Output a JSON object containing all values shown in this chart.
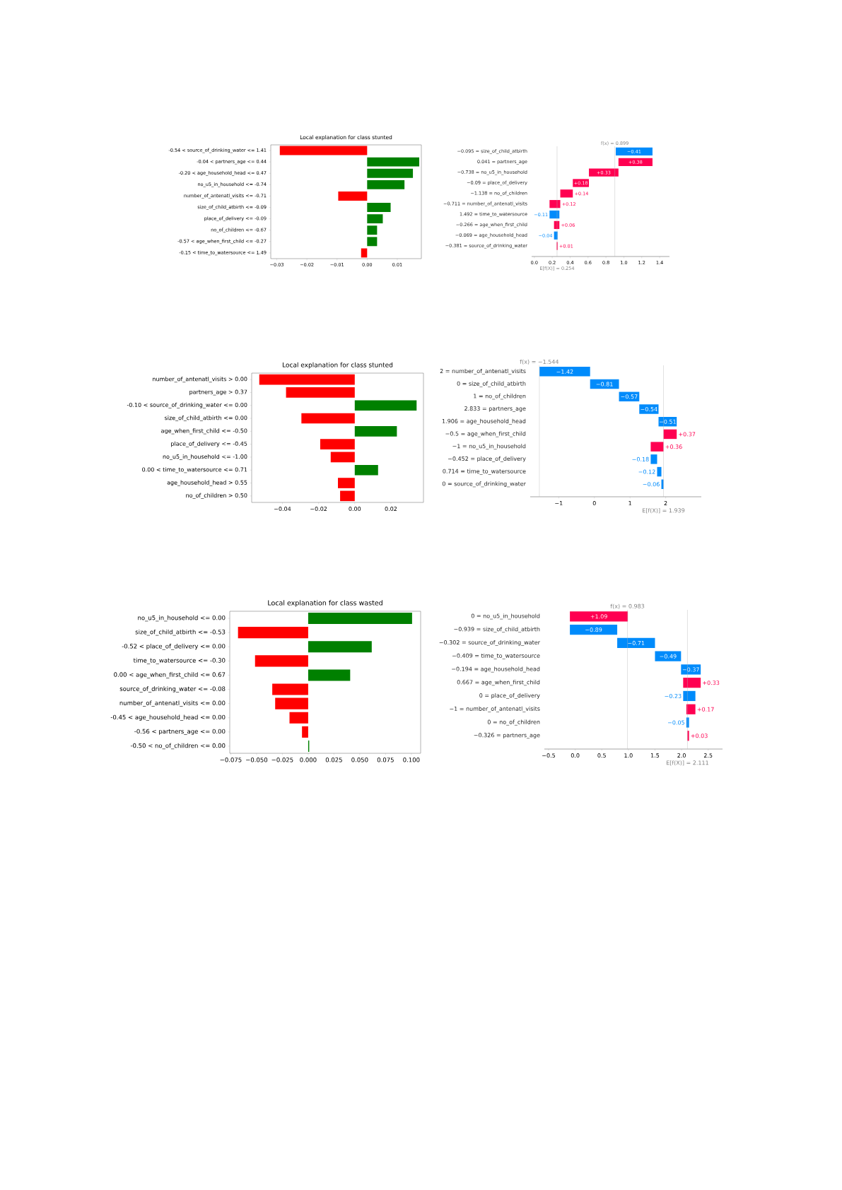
{
  "chart_data": [
    {
      "type": "bar",
      "orientation": "horizontal",
      "title": "Local explanation for class stunted",
      "categories": [
        "-0.54 < source_of_drinking_water <= 1.41",
        "-0.04 < partners_age <= 0.44",
        "-0.20 < age_household_head <= 0.47",
        "no_u5_in_household <= -0.74",
        "number_of_antenatl_visits <= -0.71",
        "size_of_child_atbirth <= -0.09",
        "place_of_delivery <= -0.09",
        "no_of_children <= -0.67",
        "-0.57 < age_when_first_child <= -0.27",
        "-0.15 < time_to_watersource <= 1.49"
      ],
      "values": [
        -0.029,
        0.0173,
        0.0152,
        0.0124,
        -0.0096,
        0.0078,
        0.0052,
        0.0033,
        0.0033,
        -0.002
      ],
      "colors": [
        "#ff0000",
        "#008000",
        "#008000",
        "#008000",
        "#ff0000",
        "#008000",
        "#008000",
        "#008000",
        "#008000",
        "#ff0000"
      ],
      "xlim": [
        -0.032,
        0.018
      ],
      "xticks": [
        {
          "value": -0.03,
          "label": "−0.03"
        },
        {
          "value": -0.02,
          "label": "−0.02"
        },
        {
          "value": -0.01,
          "label": "−0.01"
        },
        {
          "value": 0,
          "label": "0.00"
        },
        {
          "value": 0.01,
          "label": "0.01"
        }
      ]
    },
    {
      "type": "bar",
      "orientation": "horizontal",
      "categories": [
        "−0.095 = size_of_child_atbirth",
        "0.041 = partners_age",
        "−0.738 = no_u5_in_household",
        "−0.09 = place_of_delivery",
        "−1.138 = no_of_children",
        "−0.711 = number_of_antenatl_visits",
        "1.492 = time_to_watersource",
        "−0.266 = age_when_first_child",
        "−0.069 = age_household_head",
        "−0.381 = source_of_drinking_water"
      ],
      "values": [
        -0.41,
        0.38,
        0.33,
        0.18,
        0.14,
        0.12,
        -0.11,
        0.06,
        -0.04,
        0.01
      ],
      "base": [
        1.32,
        0.94,
        0.61,
        0.43,
        0.29,
        0.17,
        0.28,
        0.22,
        0.26,
        0.25
      ],
      "value_labels": [
        "−0.41",
        "+0.38",
        "+0.33",
        "+0.18",
        "+0.14",
        "+0.12",
        "−0.11",
        "+0.06",
        "−0.04",
        "+0.01"
      ],
      "colors": [
        "#008bfb",
        "#ff0051",
        "#ff0051",
        "#ff0051",
        "#ff0051",
        "#ff0051",
        "#008bfb",
        "#ff0051",
        "#008bfb",
        "#ff0051"
      ],
      "xlim": [
        -0.03,
        1.51
      ],
      "xticks": [
        {
          "value": 0,
          "label": "0.0"
        },
        0.2,
        0.4,
        0.6,
        0.8,
        {
          "value": 1,
          "label": "1.0"
        },
        1.2,
        1.4
      ],
      "ref_lines": [
        {
          "axis": "x",
          "value": 0.899,
          "label": "f(x) = 0.899"
        },
        {
          "axis": "x",
          "value": 0.254,
          "label": "E[f(X)] = 0.254"
        }
      ]
    },
    {
      "type": "bar",
      "orientation": "horizontal",
      "title": "Local explanation for class stunted",
      "categories": [
        "number_of_antenatl_visits > 0.00",
        "partners_age > 0.37",
        "-0.10 < source_of_drinking_water <= 0.00",
        "size_of_child_atbirth <= 0.00",
        "age_when_first_child <= -0.50",
        "place_of_delivery <= -0.45",
        "no_u5_in_household <= -1.00",
        "0.00 < time_to_watersource <= 0.71",
        "age_household_head > 0.55",
        "no_of_children > 0.50"
      ],
      "values": [
        -0.0528,
        -0.038,
        0.0342,
        -0.0295,
        0.0233,
        -0.0191,
        -0.0133,
        0.0129,
        -0.0093,
        -0.0081
      ],
      "colors": [
        "#ff0000",
        "#ff0000",
        "#008000",
        "#ff0000",
        "#008000",
        "#ff0000",
        "#ff0000",
        "#008000",
        "#ff0000",
        "#ff0000"
      ],
      "xlim": [
        -0.057,
        0.038
      ],
      "xticks": [
        {
          "value": -0.04,
          "label": "−0.04"
        },
        {
          "value": -0.02,
          "label": "−0.02"
        },
        {
          "value": 0,
          "label": "0.00"
        },
        {
          "value": 0.02,
          "label": "0.02"
        }
      ]
    },
    {
      "type": "bar",
      "orientation": "horizontal",
      "categories": [
        "2 = number_of_antenatl_visits",
        "0 = size_of_child_atbirth",
        "1 = no_of_children",
        "2.833 = partners_age",
        "1.906 = age_household_head",
        "−0.5 = age_when_first_child",
        "−1 = no_u5_in_household",
        "−0.452 = place_of_delivery",
        "0.714 = time_to_watersource",
        "0 = source_of_drinking_water"
      ],
      "values": [
        -1.42,
        -0.81,
        -0.57,
        -0.54,
        -0.51,
        0.37,
        0.36,
        -0.18,
        -0.12,
        -0.06
      ],
      "base": [
        -0.12,
        0.69,
        1.26,
        1.8,
        2.31,
        1.94,
        1.58,
        1.76,
        1.88,
        1.94
      ],
      "value_labels": [
        "−1.42",
        "−0.81",
        "−0.57",
        "−0.54",
        "−0.51",
        "+0.37",
        "+0.36",
        "−0.18",
        "−0.12",
        "−0.06"
      ],
      "colors": [
        "#008bfb",
        "#008bfb",
        "#008bfb",
        "#008bfb",
        "#008bfb",
        "#ff0051",
        "#ff0051",
        "#008bfb",
        "#008bfb",
        "#008bfb"
      ],
      "xlim": [
        -1.8,
        3.0
      ],
      "xticks": [
        {
          "value": -1,
          "label": "−1"
        },
        0,
        1,
        2
      ],
      "ref_lines": [
        {
          "axis": "x",
          "value": -1.544,
          "label": "f(x) = −1.544"
        },
        {
          "axis": "x",
          "value": 1.939,
          "label": "E[f(X)] = 1.939"
        }
      ]
    },
    {
      "type": "bar",
      "orientation": "horizontal",
      "title": "Local explanation for class wasted",
      "categories": [
        "no_u5_in_household <= 0.00",
        "size_of_child_atbirth <= -0.53",
        "-0.52 < place_of_delivery <= 0.00",
        "time_to_watersource <= -0.30",
        "0.00 < age_when_first_child <= 0.67",
        "source_of_drinking_water <= -0.08",
        "number_of_antenatl_visits <= 0.00",
        "-0.45 < age_household_head <= 0.00",
        "-0.56 < partners_age <= 0.00",
        "-0.50 < no_of_children <= 0.00"
      ],
      "values": [
        0.1007,
        -0.068,
        0.0616,
        -0.0515,
        0.0407,
        -0.0348,
        -0.032,
        -0.0181,
        -0.006,
        0.001
      ],
      "colors": [
        "#008000",
        "#ff0000",
        "#008000",
        "#ff0000",
        "#008000",
        "#ff0000",
        "#ff0000",
        "#ff0000",
        "#ff0000",
        "#008000"
      ],
      "xlim": [
        -0.076,
        0.109
      ],
      "xticks": [
        {
          "value": -0.075,
          "label": "−0.075"
        },
        {
          "value": -0.05,
          "label": "−0.050"
        },
        {
          "value": -0.025,
          "label": "−0.025"
        },
        {
          "value": 0,
          "label": "0.000"
        },
        {
          "value": 0.025,
          "label": "0.025"
        },
        {
          "value": 0.05,
          "label": "0.050"
        },
        {
          "value": 0.075,
          "label": "0.075"
        },
        {
          "value": 0.1,
          "label": "0.100"
        }
      ]
    },
    {
      "type": "bar",
      "orientation": "horizontal",
      "categories": [
        "0 = no_u5_in_household",
        "−0.939 = size_of_child_atbirth",
        "−0.302 = source_of_drinking_water",
        "−0.409 = time_to_watersource",
        "−0.194 = age_household_head",
        "0.667 = age_when_first_child",
        "0 = place_of_delivery",
        "−1 = number_of_antenatl_visits",
        "0 = no_of_children",
        "−0.326 = partners_age"
      ],
      "values": [
        1.09,
        -0.89,
        -0.71,
        -0.49,
        -0.37,
        0.33,
        -0.23,
        0.17,
        -0.05,
        0.03
      ],
      "base": [
        -0.1,
        0.79,
        1.5,
        1.99,
        2.36,
        2.03,
        2.26,
        2.09,
        2.14,
        2.11
      ],
      "value_labels": [
        "+1.09",
        "−0.89",
        "−0.71",
        "−0.49",
        "−0.37",
        "+0.33",
        "−0.23",
        "+0.17",
        "−0.05",
        "+0.03"
      ],
      "colors": [
        "#ff0051",
        "#008bfb",
        "#008bfb",
        "#008bfb",
        "#008bfb",
        "#ff0051",
        "#008bfb",
        "#ff0051",
        "#008bfb",
        "#ff0051"
      ],
      "xlim": [
        -0.58,
        2.77
      ],
      "xticks": [
        {
          "value": -0.5,
          "label": "−0.5"
        },
        {
          "value": 0,
          "label": "0.0"
        },
        0.5,
        {
          "value": 1,
          "label": "1.0"
        },
        1.5,
        {
          "value": 2,
          "label": "2.0"
        },
        2.5
      ],
      "ref_lines": [
        {
          "axis": "x",
          "value": 0.983,
          "label": "f(x) = 0.983"
        },
        {
          "axis": "x",
          "value": 2.111,
          "label": "E[f(X)] = 2.111"
        }
      ]
    }
  ]
}
